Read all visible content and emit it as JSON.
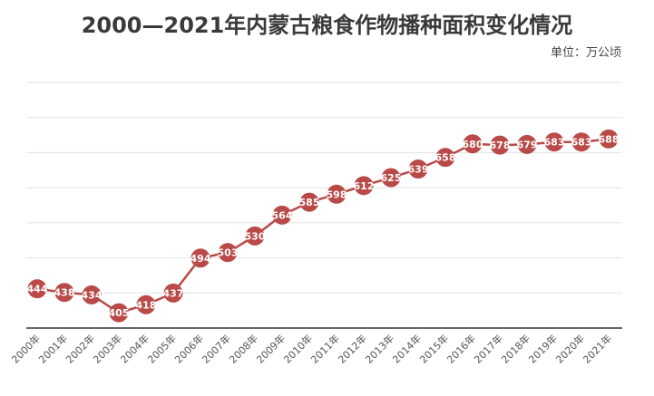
{
  "chart_data": {
    "type": "line",
    "title": "2000—2021年内蒙古粮食作物播种面积变化情况",
    "unit_label": "单位：万公顷",
    "categories": [
      "2000年",
      "2001年",
      "2002年",
      "2003年",
      "2004年",
      "2005年",
      "2006年",
      "2007年",
      "2008年",
      "2009年",
      "2010年",
      "2011年",
      "2012年",
      "2013年",
      "2014年",
      "2015年",
      "2016年",
      "2017年",
      "2018年",
      "2019年",
      "2020年",
      "2021年"
    ],
    "series": [
      {
        "values": [
          444,
          438,
          434,
          405,
          418,
          437,
          494,
          503,
          530,
          564,
          585,
          598,
          612,
          625,
          639,
          658,
          680,
          678,
          679,
          683,
          683,
          688
        ]
      }
    ],
    "ylim": [
      380,
      780
    ],
    "grid": true,
    "y_tick_labels_shown": false,
    "series_color": "#b94a48"
  }
}
